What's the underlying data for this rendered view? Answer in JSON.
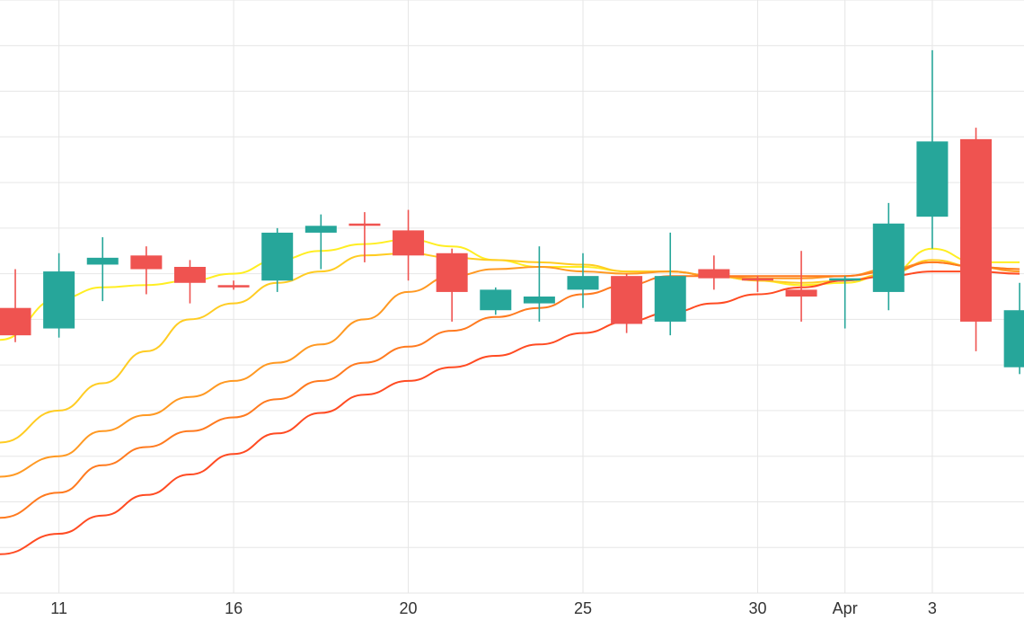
{
  "chart_data": {
    "type": "candlestick",
    "x_tick_labels": [
      "11",
      "16",
      "20",
      "25",
      "30",
      "Apr",
      "3"
    ],
    "x_ticks": [
      {
        "label": "11",
        "x": 1
      },
      {
        "label": "16",
        "x": 5
      },
      {
        "label": "20",
        "x": 9
      },
      {
        "label": "25",
        "x": 13
      },
      {
        "label": "30",
        "x": 17
      },
      {
        "label": "Apr",
        "x": 19
      },
      {
        "label": "3",
        "x": 21
      }
    ],
    "xlim": [
      -0.35,
      23.1
    ],
    "ylim": [
      0,
      13
    ],
    "grid": true,
    "y_gridlines": [
      0,
      1,
      2,
      3,
      4,
      5,
      6,
      7,
      8,
      9,
      10,
      11,
      12,
      13
    ],
    "candles": [
      {
        "x": 0,
        "open": 6.25,
        "high": 7.1,
        "low": 5.5,
        "close": 5.65
      },
      {
        "x": 1,
        "open": 5.8,
        "high": 7.45,
        "low": 5.6,
        "close": 7.05
      },
      {
        "x": 2,
        "open": 7.2,
        "high": 7.8,
        "low": 6.4,
        "close": 7.35
      },
      {
        "x": 3,
        "open": 7.4,
        "high": 7.6,
        "low": 6.55,
        "close": 7.1
      },
      {
        "x": 4,
        "open": 7.15,
        "high": 7.3,
        "low": 6.35,
        "close": 6.8
      },
      {
        "x": 5,
        "open": 6.75,
        "high": 6.85,
        "low": 6.65,
        "close": 6.7
      },
      {
        "x": 6,
        "open": 6.85,
        "high": 8.0,
        "low": 6.6,
        "close": 7.9
      },
      {
        "x": 7,
        "open": 7.9,
        "high": 8.3,
        "low": 7.1,
        "close": 8.05
      },
      {
        "x": 8,
        "open": 8.1,
        "high": 8.35,
        "low": 7.25,
        "close": 8.05
      },
      {
        "x": 9,
        "open": 7.95,
        "high": 8.4,
        "low": 6.85,
        "close": 7.4
      },
      {
        "x": 10,
        "open": 7.45,
        "high": 7.55,
        "low": 5.95,
        "close": 6.6
      },
      {
        "x": 11,
        "open": 6.2,
        "high": 6.7,
        "low": 6.1,
        "close": 6.65
      },
      {
        "x": 12,
        "open": 6.35,
        "high": 7.6,
        "low": 5.95,
        "close": 6.5
      },
      {
        "x": 13,
        "open": 6.65,
        "high": 7.45,
        "low": 6.25,
        "close": 6.95
      },
      {
        "x": 14,
        "open": 6.95,
        "high": 7.0,
        "low": 5.7,
        "close": 5.9
      },
      {
        "x": 15,
        "open": 5.95,
        "high": 7.9,
        "low": 5.65,
        "close": 6.95
      },
      {
        "x": 16,
        "open": 7.1,
        "high": 7.4,
        "low": 6.65,
        "close": 6.9
      },
      {
        "x": 17,
        "open": 6.9,
        "high": 6.95,
        "low": 6.6,
        "close": 6.85
      },
      {
        "x": 18,
        "open": 6.65,
        "high": 7.5,
        "low": 5.95,
        "close": 6.5
      },
      {
        "x": 19,
        "open": 6.85,
        "high": 6.95,
        "low": 5.8,
        "close": 6.9
      },
      {
        "x": 20,
        "open": 6.6,
        "high": 8.55,
        "low": 6.2,
        "close": 8.1
      },
      {
        "x": 21,
        "open": 8.25,
        "high": 11.9,
        "low": 7.55,
        "close": 9.9
      },
      {
        "x": 22,
        "open": 9.95,
        "high": 10.2,
        "low": 5.3,
        "close": 5.95
      },
      {
        "x": 23,
        "open": 4.95,
        "high": 6.8,
        "low": 4.8,
        "close": 6.2
      }
    ],
    "moving_averages": [
      {
        "color": "#ffee22",
        "points": [
          [
            -0.35,
            5.55
          ],
          [
            1,
            6.45
          ],
          [
            2,
            6.7
          ],
          [
            3,
            6.75
          ],
          [
            4,
            6.85
          ],
          [
            5,
            7.0
          ],
          [
            6,
            7.3
          ],
          [
            7,
            7.5
          ],
          [
            8,
            7.65
          ],
          [
            9,
            7.75
          ],
          [
            10,
            7.6
          ],
          [
            11,
            7.3
          ],
          [
            12,
            7.15
          ],
          [
            13,
            7.15
          ],
          [
            14,
            7.05
          ],
          [
            15,
            7.05
          ],
          [
            16,
            6.95
          ],
          [
            17,
            6.85
          ],
          [
            18,
            6.75
          ],
          [
            19,
            6.8
          ],
          [
            20,
            7.0
          ],
          [
            21,
            7.55
          ],
          [
            22,
            7.25
          ],
          [
            23,
            7.25
          ]
        ]
      },
      {
        "color": "#ffcc22",
        "points": [
          [
            -0.35,
            3.3
          ],
          [
            1,
            4.0
          ],
          [
            2,
            4.6
          ],
          [
            3,
            5.3
          ],
          [
            4,
            6.0
          ],
          [
            5,
            6.35
          ],
          [
            6,
            6.8
          ],
          [
            7,
            7.05
          ],
          [
            8,
            7.4
          ],
          [
            9,
            7.45
          ],
          [
            10,
            7.35
          ],
          [
            11,
            7.3
          ],
          [
            12,
            7.25
          ],
          [
            13,
            7.2
          ],
          [
            14,
            7.05
          ],
          [
            15,
            7.05
          ],
          [
            16,
            6.95
          ],
          [
            17,
            6.85
          ],
          [
            18,
            6.8
          ],
          [
            19,
            6.85
          ],
          [
            20,
            7.0
          ],
          [
            21,
            7.3
          ],
          [
            22,
            7.15
          ],
          [
            23,
            7.1
          ]
        ]
      },
      {
        "color": "#ff9922",
        "points": [
          [
            -0.35,
            2.55
          ],
          [
            1,
            3.0
          ],
          [
            2,
            3.55
          ],
          [
            3,
            3.9
          ],
          [
            4,
            4.3
          ],
          [
            5,
            4.65
          ],
          [
            6,
            5.05
          ],
          [
            7,
            5.45
          ],
          [
            8,
            6.0
          ],
          [
            9,
            6.6
          ],
          [
            10,
            6.95
          ],
          [
            11,
            7.1
          ],
          [
            12,
            7.15
          ],
          [
            13,
            7.05
          ],
          [
            14,
            7.0
          ],
          [
            15,
            7.05
          ],
          [
            16,
            6.95
          ],
          [
            17,
            6.9
          ],
          [
            18,
            6.9
          ],
          [
            19,
            6.95
          ],
          [
            20,
            7.1
          ],
          [
            21,
            7.25
          ],
          [
            22,
            7.15
          ],
          [
            23,
            7.05
          ]
        ]
      },
      {
        "color": "#ff7a1f",
        "points": [
          [
            -0.35,
            1.65
          ],
          [
            1,
            2.2
          ],
          [
            2,
            2.8
          ],
          [
            3,
            3.2
          ],
          [
            4,
            3.55
          ],
          [
            5,
            3.85
          ],
          [
            6,
            4.25
          ],
          [
            7,
            4.65
          ],
          [
            8,
            5.05
          ],
          [
            9,
            5.4
          ],
          [
            10,
            5.75
          ],
          [
            11,
            6.05
          ],
          [
            12,
            6.25
          ],
          [
            13,
            6.55
          ],
          [
            14,
            6.75
          ],
          [
            15,
            6.95
          ],
          [
            16,
            6.95
          ],
          [
            17,
            6.95
          ],
          [
            18,
            6.95
          ],
          [
            19,
            6.95
          ],
          [
            20,
            7.05
          ],
          [
            21,
            7.25
          ],
          [
            22,
            7.15
          ],
          [
            23,
            7.1
          ]
        ]
      },
      {
        "color": "#ff4b22",
        "points": [
          [
            -0.35,
            0.85
          ],
          [
            1,
            1.3
          ],
          [
            2,
            1.7
          ],
          [
            3,
            2.15
          ],
          [
            4,
            2.6
          ],
          [
            5,
            3.05
          ],
          [
            6,
            3.5
          ],
          [
            7,
            3.95
          ],
          [
            8,
            4.35
          ],
          [
            9,
            4.65
          ],
          [
            10,
            4.95
          ],
          [
            11,
            5.2
          ],
          [
            12,
            5.45
          ],
          [
            13,
            5.7
          ],
          [
            14,
            5.95
          ],
          [
            15,
            6.15
          ],
          [
            16,
            6.35
          ],
          [
            17,
            6.55
          ],
          [
            18,
            6.7
          ],
          [
            19,
            6.85
          ],
          [
            20,
            6.95
          ],
          [
            21,
            7.05
          ],
          [
            22,
            7.05
          ],
          [
            23,
            7.0
          ]
        ]
      }
    ],
    "colors": {
      "up": "#26a69a",
      "down": "#ef5350",
      "grid": "#e6e6e6",
      "background": "#ffffff"
    }
  }
}
